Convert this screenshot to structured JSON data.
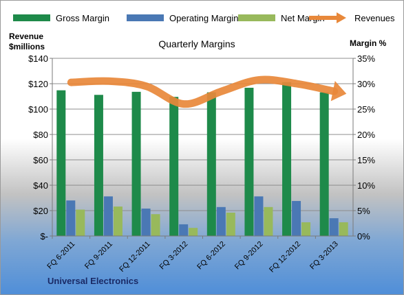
{
  "chart_data": {
    "type": "bar",
    "title": "Quarterly Margins",
    "company": "Universal Electronics",
    "ylabel_left_line1": "Revenue",
    "ylabel_left_line2": "$millions",
    "ylabel_right": "Margin %",
    "categories": [
      "FQ 6-2011",
      "FQ 9-2011",
      "FQ 12-2011",
      "FQ 3-2012",
      "FQ 6-2012",
      "FQ 9-2012",
      "FQ 12-2012",
      "FQ 3-2013"
    ],
    "left_axis": {
      "ylim": [
        0,
        140
      ],
      "ticks": [
        0,
        20,
        40,
        60,
        80,
        100,
        120,
        140
      ],
      "tick_labels": [
        "$-",
        "$20",
        "$40",
        "$60",
        "$80",
        "$100",
        "$120",
        "$140"
      ]
    },
    "right_axis": {
      "ylim": [
        0,
        35
      ],
      "ticks": [
        0,
        5,
        10,
        15,
        20,
        25,
        30,
        35
      ],
      "tick_labels": [
        "0%",
        "5%",
        "10%",
        "15%",
        "20%",
        "25%",
        "30%",
        "35%"
      ]
    },
    "series": [
      {
        "name": "Gross Margin",
        "kind": "bar",
        "axis": "right",
        "color": "#1e8a4a",
        "values": [
          28.7,
          27.8,
          28.4,
          27.4,
          28.3,
          29.2,
          30.3,
          28.3
        ]
      },
      {
        "name": "Operating Margin",
        "kind": "bar",
        "axis": "right",
        "color": "#4a78b4",
        "values": [
          7.0,
          7.8,
          5.4,
          2.3,
          5.7,
          7.8,
          6.9,
          3.5
        ]
      },
      {
        "name": "Net Margin",
        "kind": "bar",
        "axis": "right",
        "color": "#98b95c",
        "values": [
          5.2,
          5.8,
          4.3,
          1.6,
          4.6,
          5.7,
          2.7,
          2.7
        ]
      },
      {
        "name": "Revenues",
        "kind": "line",
        "axis": "left",
        "color": "#e8883a",
        "values": [
          121,
          122,
          118,
          104,
          114,
          123,
          120,
          114
        ]
      }
    ],
    "grid": true,
    "legend_position": "top"
  }
}
